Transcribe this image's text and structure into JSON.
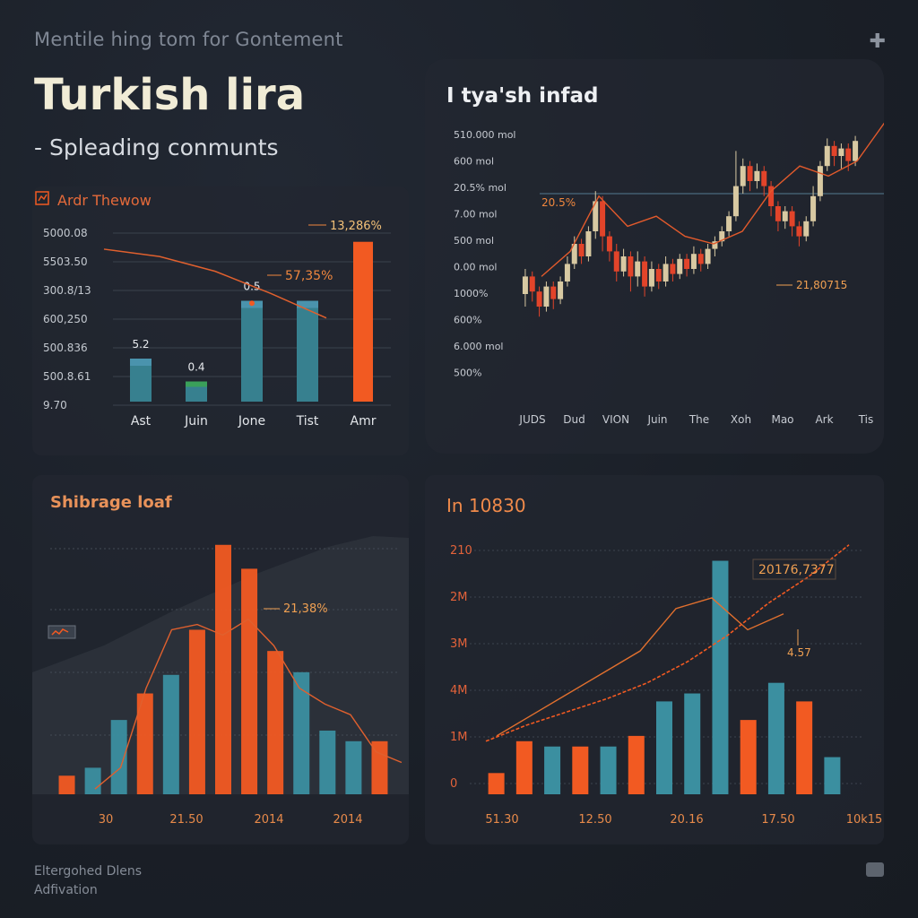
{
  "header": {
    "top_subtitle": "Mentile hing tom for Gontement",
    "title": "Turkish lira",
    "subtitle": "- Spleading conmunts",
    "plus_icon": "plus-icon"
  },
  "footer": {
    "line1": "Eltergohed Dlens",
    "line2": "Adfivation"
  },
  "colors": {
    "orange": "#f25a22",
    "teal": "#3b8fa0",
    "gold": "#e3c08a",
    "background": "#1a1f27",
    "grid": "#3a414c"
  },
  "chart_data": [
    {
      "type": "bar",
      "panel_title": "Ardr Thewow",
      "y_tick_labels": [
        "5000.08",
        "5503.50",
        "300.8/13",
        "600,250",
        "500.836",
        "500.8.61",
        "9.70"
      ],
      "categories": [
        "Ast",
        "Juin",
        "Jone",
        "Tist",
        "Amr"
      ],
      "values": [
        1.75,
        0.82,
        4.1,
        4.1,
        6.5
      ],
      "ylim": [
        0,
        7
      ],
      "bar_labels": [
        "5.2",
        "0.4",
        "0.5",
        "",
        ""
      ],
      "line": [
        6.2,
        5.9,
        5.3,
        4.4,
        3.4
      ],
      "annotations": [
        "57,35%",
        "13,286%"
      ]
    },
    {
      "type": "candlestick",
      "panel_title": "I tya'sh infad",
      "y_tick_labels": [
        "510.000 mol",
        "600 mol",
        "20.5% mol",
        "7.00 mol",
        "500 mol",
        "0.00 mol",
        "1000%",
        "600%",
        "6.000 mol",
        "500%"
      ],
      "x_tick_labels": [
        "JUDS",
        "Dud",
        "VION",
        "Juin",
        "The",
        "Xoh",
        "Mao",
        "Ark",
        "Tis"
      ],
      "ylim": [
        0,
        100
      ],
      "candles": [
        [
          35,
          42,
          30,
          45
        ],
        [
          42,
          36,
          32,
          44
        ],
        [
          36,
          30,
          26,
          38
        ],
        [
          30,
          38,
          28,
          40
        ],
        [
          38,
          33,
          29,
          40
        ],
        [
          33,
          40,
          31,
          42
        ],
        [
          40,
          47,
          38,
          50
        ],
        [
          47,
          55,
          45,
          58
        ],
        [
          55,
          50,
          47,
          57
        ],
        [
          50,
          60,
          48,
          62
        ],
        [
          60,
          72,
          57,
          76
        ],
        [
          72,
          58,
          52,
          74
        ],
        [
          58,
          52,
          48,
          60
        ],
        [
          52,
          44,
          40,
          55
        ],
        [
          44,
          50,
          42,
          53
        ],
        [
          50,
          42,
          36,
          52
        ],
        [
          42,
          48,
          38,
          52
        ],
        [
          48,
          38,
          34,
          50
        ],
        [
          38,
          45,
          36,
          48
        ],
        [
          45,
          40,
          37,
          47
        ],
        [
          40,
          47,
          38,
          50
        ],
        [
          47,
          43,
          40,
          49
        ],
        [
          43,
          49,
          41,
          51
        ],
        [
          49,
          45,
          42,
          51
        ],
        [
          45,
          51,
          43,
          54
        ],
        [
          51,
          47,
          44,
          53
        ],
        [
          47,
          53,
          45,
          55
        ],
        [
          53,
          56,
          50,
          58
        ],
        [
          56,
          60,
          54,
          62
        ],
        [
          60,
          66,
          58,
          68
        ],
        [
          66,
          78,
          64,
          92
        ],
        [
          78,
          86,
          75,
          89
        ],
        [
          86,
          80,
          76,
          88
        ],
        [
          80,
          84,
          77,
          87
        ],
        [
          84,
          78,
          74,
          86
        ],
        [
          78,
          70,
          66,
          80
        ],
        [
          70,
          64,
          60,
          72
        ],
        [
          64,
          68,
          61,
          70
        ],
        [
          68,
          62,
          58,
          70
        ],
        [
          62,
          58,
          54,
          64
        ],
        [
          58,
          64,
          56,
          66
        ],
        [
          64,
          74,
          62,
          78
        ],
        [
          74,
          86,
          72,
          88
        ],
        [
          86,
          94,
          84,
          97
        ],
        [
          94,
          90,
          86,
          96
        ],
        [
          90,
          93,
          85,
          95
        ],
        [
          93,
          88,
          84,
          95
        ],
        [
          88,
          96,
          86,
          98
        ]
      ],
      "trend_line": [
        42,
        52,
        74,
        62,
        66,
        58,
        55,
        60,
        76,
        86,
        82,
        88,
        104
      ],
      "annotations": [
        "20.5%",
        "21,80715"
      ]
    },
    {
      "type": "bar",
      "panel_title": "Shibrage loaf",
      "x_tick_labels": [
        "30",
        "21.50",
        "2014",
        "2014"
      ],
      "values": [
        0.07,
        0.1,
        0.28,
        0.38,
        0.45,
        0.62,
        0.94,
        0.85,
        0.54,
        0.46,
        0.24,
        0.2,
        0.2
      ],
      "series_colors": [
        "orange",
        "teal",
        "teal",
        "orange",
        "teal",
        "orange",
        "orange",
        "orange",
        "orange",
        "teal",
        "teal",
        "teal",
        "orange"
      ],
      "ylim": [
        0,
        1
      ],
      "line": [
        0.02,
        0.1,
        0.4,
        0.62,
        0.64,
        0.6,
        0.66,
        0.56,
        0.4,
        0.34,
        0.3,
        0.16,
        0.12
      ],
      "annotations": [
        "21,38%"
      ]
    },
    {
      "type": "bar",
      "panel_title": "In 10830",
      "y_tick_labels": [
        "210",
        "2M",
        "3M",
        "4M",
        "1M",
        "0"
      ],
      "x_tick_labels": [
        "51.30",
        "12.50",
        "20.16",
        "17.50",
        "10k15"
      ],
      "values": [
        0.08,
        0.2,
        0.18,
        0.18,
        0.18,
        0.22,
        0.35,
        0.38,
        0.88,
        0.28,
        0.42,
        0.35,
        0.14
      ],
      "series_colors": [
        "orange",
        "orange",
        "teal",
        "orange",
        "teal",
        "orange",
        "teal",
        "teal",
        "teal",
        "orange",
        "teal",
        "orange",
        "teal"
      ],
      "ylim": [
        0,
        1
      ],
      "line": [
        0.22,
        0.3,
        0.38,
        0.46,
        0.54,
        0.7,
        0.74,
        0.62,
        0.68
      ],
      "trend_line": [
        0.2,
        0.26,
        0.31,
        0.36,
        0.42,
        0.5,
        0.6,
        0.72,
        0.82,
        0.94
      ],
      "annotations": [
        "20176,7377",
        "4.57"
      ]
    }
  ]
}
